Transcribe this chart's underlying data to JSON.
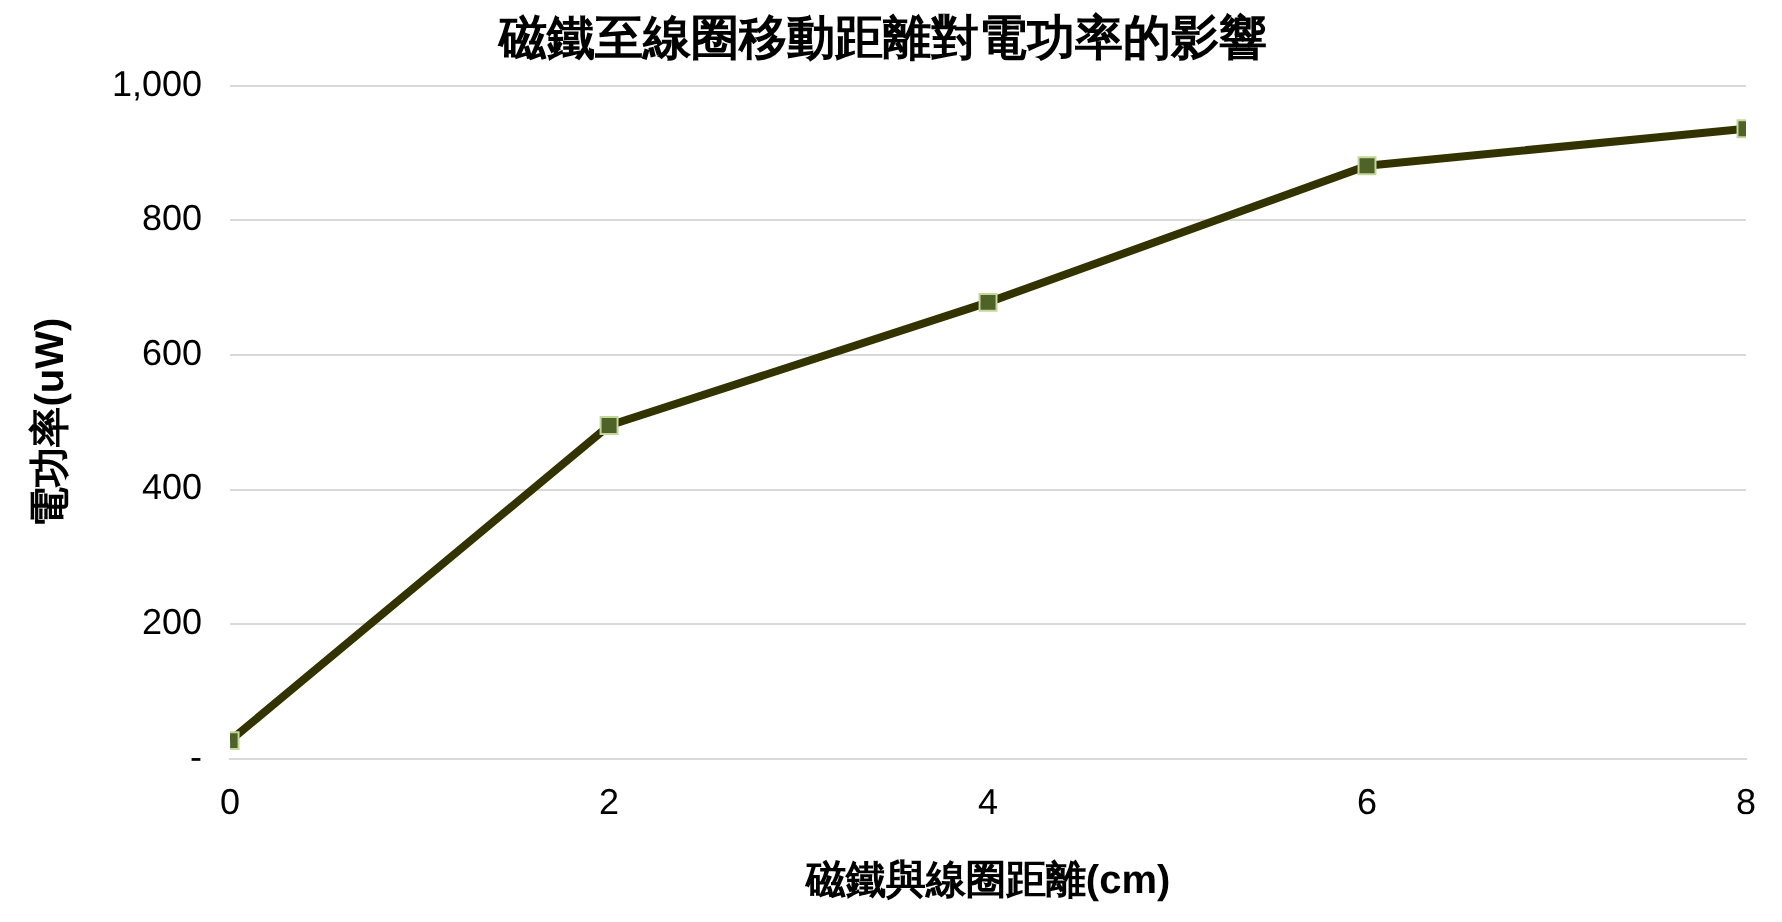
{
  "chart_data": {
    "type": "line",
    "title": "磁鐵至線圈移動距離對電功率的影響",
    "xlabel": "磁鐵與線圈距離(cm)",
    "ylabel": "電功率(uW)",
    "x": [
      0,
      2,
      4,
      6,
      8
    ],
    "series": [
      {
        "color": "#333300",
        "values": [
          27,
          495,
          678,
          881,
          936
        ]
      }
    ],
    "xlim": [
      0,
      8
    ],
    "xticks": [
      0,
      2,
      4,
      6,
      8
    ],
    "ylim": [
      0,
      1000
    ],
    "yticks": [
      {
        "value": 0,
        "label": "-"
      },
      200,
      400,
      600,
      800,
      {
        "value": 1000,
        "label": "1,000"
      }
    ],
    "grid": "y",
    "marker": "square",
    "line_style": "solid",
    "legend": false
  }
}
